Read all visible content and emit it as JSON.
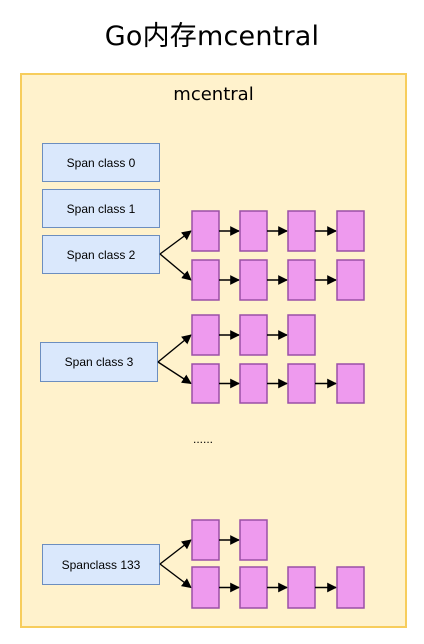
{
  "title": "Go内存mcentral",
  "container": {
    "label": "mcentral"
  },
  "span_classes": [
    {
      "id": "0",
      "label": "Span class 0"
    },
    {
      "id": "1",
      "label": "Span class 1"
    },
    {
      "id": "2",
      "label": "Span class 2"
    },
    {
      "id": "3",
      "label": "Span class 3"
    },
    {
      "id": "133",
      "label": "Spanclass 133"
    }
  ],
  "ellipsis": "......",
  "lists": [
    {
      "span_class": "2",
      "row": "upper",
      "node_count": 4
    },
    {
      "span_class": "2",
      "row": "lower",
      "node_count": 4
    },
    {
      "span_class": "3",
      "row": "upper",
      "node_count": 3
    },
    {
      "span_class": "3",
      "row": "lower",
      "node_count": 4
    },
    {
      "span_class": "133",
      "row": "upper",
      "node_count": 2
    },
    {
      "span_class": "133",
      "row": "lower",
      "node_count": 4
    }
  ],
  "colors": {
    "container_fill": "#fff2cc",
    "container_border": "#f7cd5c",
    "span_class_fill": "#dae8fc",
    "span_class_border": "#6c8ebf",
    "node_fill": "#ee9aee",
    "node_border": "#9a4fa6"
  }
}
